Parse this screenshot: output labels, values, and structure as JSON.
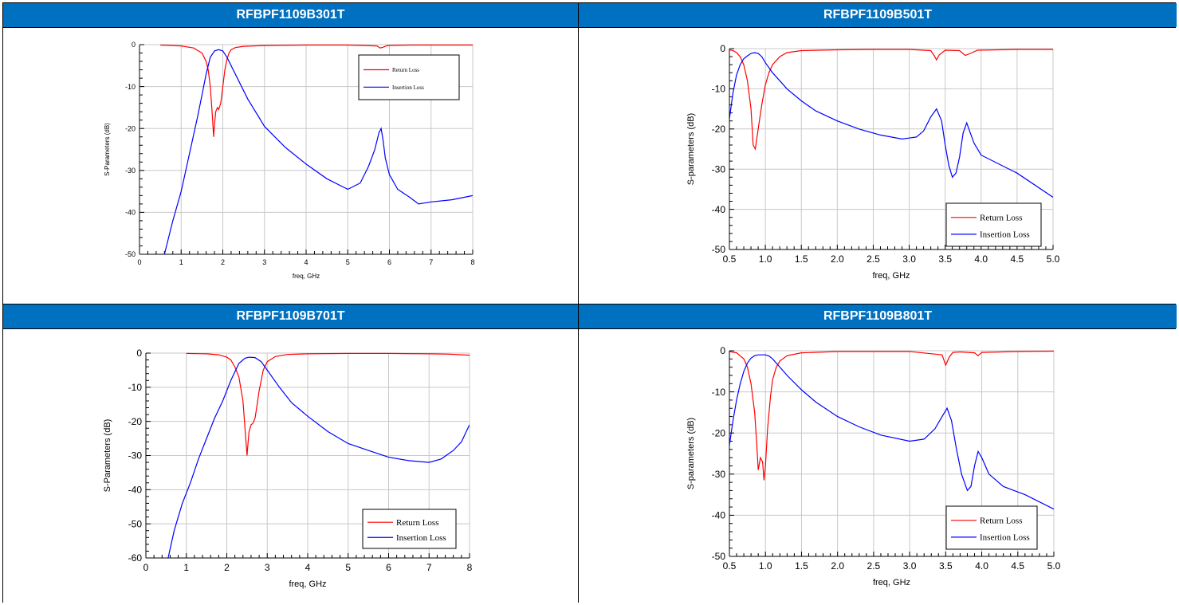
{
  "panels": [
    {
      "title": "RFBPF1109B301T",
      "chart_data": {
        "type": "line",
        "xlabel": "freq, GHz",
        "ylabel": "S-Parameters (dB)",
        "xlim": [
          0,
          8
        ],
        "ylim": [
          -50,
          0
        ],
        "xticks": [
          "0",
          "1",
          "2",
          "3",
          "4",
          "5",
          "6",
          "7",
          "8"
        ],
        "yticks": [
          "0",
          "-10",
          "-20",
          "-30",
          "-40",
          "-50"
        ],
        "grid": true,
        "legend_position": "top-right",
        "series": [
          {
            "name": "Return Loss",
            "color": "#ff0000",
            "x": [
              0.5,
              1.0,
              1.3,
              1.5,
              1.6,
              1.65,
              1.7,
              1.75,
              1.78,
              1.8,
              1.83,
              1.87,
              1.9,
              1.95,
              2.0,
              2.05,
              2.1,
              2.15,
              2.2,
              2.3,
              2.5,
              3.0,
              4.0,
              5.0,
              5.7,
              5.78,
              5.85,
              5.95,
              6.5,
              7.0,
              8.0
            ],
            "y": [
              -0.1,
              -0.3,
              -0.8,
              -2,
              -4,
              -6,
              -10,
              -17,
              -22,
              -19,
              -16,
              -15,
              -15.5,
              -14,
              -10,
              -6,
              -3.5,
              -2,
              -1.2,
              -0.7,
              -0.4,
              -0.2,
              -0.1,
              -0.1,
              -0.3,
              -0.8,
              -0.6,
              -0.2,
              -0.1,
              -0.1,
              -0.1
            ]
          },
          {
            "name": "Insertion Loss",
            "color": "#0000ff",
            "x": [
              0.6,
              0.8,
              1.0,
              1.2,
              1.4,
              1.5,
              1.6,
              1.7,
              1.8,
              1.9,
              2.0,
              2.1,
              2.2,
              2.4,
              2.6,
              3.0,
              3.5,
              4.0,
              4.5,
              5.0,
              5.3,
              5.5,
              5.65,
              5.75,
              5.8,
              5.85,
              5.9,
              6.0,
              6.2,
              6.5,
              6.7,
              7.0,
              7.5,
              8.0
            ],
            "y": [
              -50,
              -42,
              -35,
              -26,
              -17,
              -12,
              -7,
              -3,
              -1.5,
              -1.2,
              -1.5,
              -3,
              -5,
              -9,
              -13,
              -19.5,
              -24.5,
              -28.5,
              -32,
              -34.5,
              -33,
              -29,
              -25,
              -21,
              -20,
              -23,
              -27,
              -31,
              -34.5,
              -36.5,
              -38,
              -37.5,
              -37,
              -36
            ]
          }
        ]
      }
    },
    {
      "title": "RFBPF1109B501T",
      "chart_data": {
        "type": "line",
        "xlabel": "freq, GHz",
        "ylabel": "S-parameters (dB)",
        "xlim": [
          0.5,
          5.0
        ],
        "ylim": [
          -50,
          0
        ],
        "xticks": [
          "0.5",
          "1.0",
          "1.5",
          "2.0",
          "2.5",
          "3.0",
          "3.5",
          "4.0",
          "4.5",
          "5.0"
        ],
        "yticks": [
          "0",
          "-10",
          "-20",
          "-30",
          "-40",
          "-50"
        ],
        "grid": true,
        "legend_position": "bottom-right",
        "series": [
          {
            "name": "Return Loss",
            "color": "#ff0000",
            "x": [
              0.5,
              0.55,
              0.6,
              0.65,
              0.7,
              0.75,
              0.8,
              0.83,
              0.86,
              0.9,
              0.95,
              1.0,
              1.05,
              1.1,
              1.2,
              1.3,
              1.5,
              2.0,
              2.5,
              3.0,
              3.3,
              3.35,
              3.38,
              3.42,
              3.5,
              3.7,
              3.78,
              3.85,
              3.95,
              4.5,
              5.0
            ],
            "y": [
              -0.3,
              -0.5,
              -1,
              -2,
              -4,
              -8,
              -15,
              -24,
              -25,
              -20,
              -14,
              -9,
              -6,
              -4,
              -2,
              -1,
              -0.5,
              -0.3,
              -0.2,
              -0.2,
              -0.5,
              -1.8,
              -2.8,
              -1.5,
              -0.4,
              -0.5,
              -1.7,
              -1.2,
              -0.4,
              -0.2,
              -0.2
            ]
          },
          {
            "name": "Insertion Loss",
            "color": "#0000ff",
            "x": [
              0.5,
              0.55,
              0.6,
              0.65,
              0.7,
              0.75,
              0.8,
              0.85,
              0.9,
              0.95,
              1.0,
              1.1,
              1.2,
              1.3,
              1.5,
              1.7,
              2.0,
              2.3,
              2.6,
              2.9,
              3.1,
              3.2,
              3.3,
              3.38,
              3.45,
              3.5,
              3.55,
              3.6,
              3.65,
              3.7,
              3.75,
              3.8,
              3.85,
              3.9,
              4.0,
              4.5,
              5.0
            ],
            "y": [
              -17.5,
              -11,
              -6.5,
              -4,
              -2.5,
              -1.8,
              -1.2,
              -1,
              -1.2,
              -2,
              -3.5,
              -6,
              -8,
              -10,
              -13,
              -15.5,
              -18,
              -20,
              -21.5,
              -22.5,
              -22,
              -20.5,
              -17,
              -15,
              -18,
              -24,
              -29,
              -32,
              -31,
              -27,
              -21,
              -18.5,
              -21,
              -23.5,
              -26.5,
              -31,
              -37
            ]
          }
        ]
      }
    },
    {
      "title": "RFBPF1109B701T",
      "chart_data": {
        "type": "line",
        "xlabel": "freq, GHz",
        "ylabel": "S-Parameters (dB)",
        "xlim": [
          0,
          8
        ],
        "ylim": [
          -60,
          0
        ],
        "xticks": [
          "0",
          "1",
          "2",
          "3",
          "4",
          "5",
          "6",
          "7",
          "8"
        ],
        "yticks": [
          "0",
          "-10",
          "-20",
          "-30",
          "-40",
          "-50",
          "-60"
        ],
        "grid": true,
        "legend_position": "bottom-right",
        "series": [
          {
            "name": "Return Loss",
            "color": "#ff0000",
            "x": [
              1.0,
              1.5,
              1.8,
              2.0,
              2.1,
              2.2,
              2.3,
              2.4,
              2.45,
              2.5,
              2.52,
              2.55,
              2.6,
              2.65,
              2.7,
              2.75,
              2.8,
              2.9,
              3.0,
              3.2,
              3.5,
              4.0,
              5.0,
              6.0,
              7.0,
              7.5,
              8.0
            ],
            "y": [
              -0.1,
              -0.2,
              -0.5,
              -1.2,
              -2,
              -4,
              -7,
              -14,
              -22,
              -30,
              -27,
              -23,
              -21,
              -20.5,
              -19,
              -15,
              -11,
              -5,
              -2.5,
              -1,
              -0.4,
              -0.2,
              -0.1,
              -0.1,
              -0.2,
              -0.3,
              -0.6
            ]
          },
          {
            "name": "Insertion Loss",
            "color": "#0000ff",
            "x": [
              0.55,
              0.7,
              0.9,
              1.1,
              1.3,
              1.5,
              1.7,
              1.9,
              2.1,
              2.3,
              2.45,
              2.55,
              2.7,
              2.85,
              3.0,
              3.3,
              3.6,
              4.0,
              4.5,
              5.0,
              5.5,
              6.0,
              6.5,
              7.0,
              7.3,
              7.6,
              7.8,
              8.0
            ],
            "y": [
              -60,
              -52,
              -44,
              -38,
              -31,
              -25,
              -19,
              -14,
              -8,
              -3,
              -1.5,
              -1.2,
              -1.3,
              -2.5,
              -5,
              -10,
              -14.5,
              -18.5,
              -23,
              -26.5,
              -28.5,
              -30.5,
              -31.5,
              -32,
              -31,
              -28.5,
              -26,
              -21
            ]
          }
        ]
      }
    },
    {
      "title": "RFBPF1109B801T",
      "chart_data": {
        "type": "line",
        "xlabel": "freq, GHz",
        "ylabel": "S-parameters (dB)",
        "xlim": [
          0.5,
          5.0
        ],
        "ylim": [
          -50,
          0
        ],
        "xticks": [
          "0.5",
          "1.0",
          "1.5",
          "2.0",
          "2.5",
          "3.0",
          "3.5",
          "4.0",
          "4.5",
          "5.0"
        ],
        "yticks": [
          "0",
          "-10",
          "-20",
          "-30",
          "-40",
          "-50"
        ],
        "grid": true,
        "legend_position": "bottom-right",
        "series": [
          {
            "name": "Return Loss",
            "color": "#ff0000",
            "x": [
              0.5,
              0.6,
              0.7,
              0.75,
              0.8,
              0.85,
              0.88,
              0.9,
              0.93,
              0.96,
              0.98,
              1.0,
              1.03,
              1.07,
              1.1,
              1.15,
              1.2,
              1.3,
              1.5,
              2.0,
              3.0,
              3.45,
              3.5,
              3.55,
              3.6,
              3.7,
              3.9,
              3.95,
              4.0,
              4.5,
              5.0
            ],
            "y": [
              -0.2,
              -0.5,
              -2,
              -4,
              -8,
              -15,
              -23,
              -29,
              -26,
              -27,
              -31.5,
              -28,
              -19,
              -11,
              -7,
              -4,
              -2.5,
              -1.2,
              -0.5,
              -0.2,
              -0.2,
              -1,
              -3.5,
              -1.5,
              -0.4,
              -0.3,
              -0.5,
              -1.2,
              -0.4,
              -0.2,
              -0.1
            ]
          },
          {
            "name": "Insertion Loss",
            "color": "#0000ff",
            "x": [
              0.5,
              0.55,
              0.6,
              0.65,
              0.7,
              0.75,
              0.8,
              0.85,
              0.9,
              0.95,
              1.0,
              1.05,
              1.1,
              1.2,
              1.3,
              1.5,
              1.7,
              2.0,
              2.3,
              2.6,
              3.0,
              3.2,
              3.35,
              3.45,
              3.52,
              3.58,
              3.65,
              3.72,
              3.8,
              3.85,
              3.9,
              3.95,
              4.0,
              4.1,
              4.3,
              4.6,
              5.0
            ],
            "y": [
              -23,
              -17,
              -12,
              -8,
              -5,
              -3,
              -1.8,
              -1.2,
              -1,
              -1,
              -1,
              -1.3,
              -2,
              -4,
              -6,
              -9.5,
              -12.5,
              -16,
              -18.5,
              -20.5,
              -22,
              -21.5,
              -19,
              -16,
              -14,
              -17,
              -24,
              -30,
              -34,
              -33,
              -28,
              -24.5,
              -26,
              -30,
              -33,
              -35,
              -38.5
            ]
          }
        ]
      }
    }
  ]
}
